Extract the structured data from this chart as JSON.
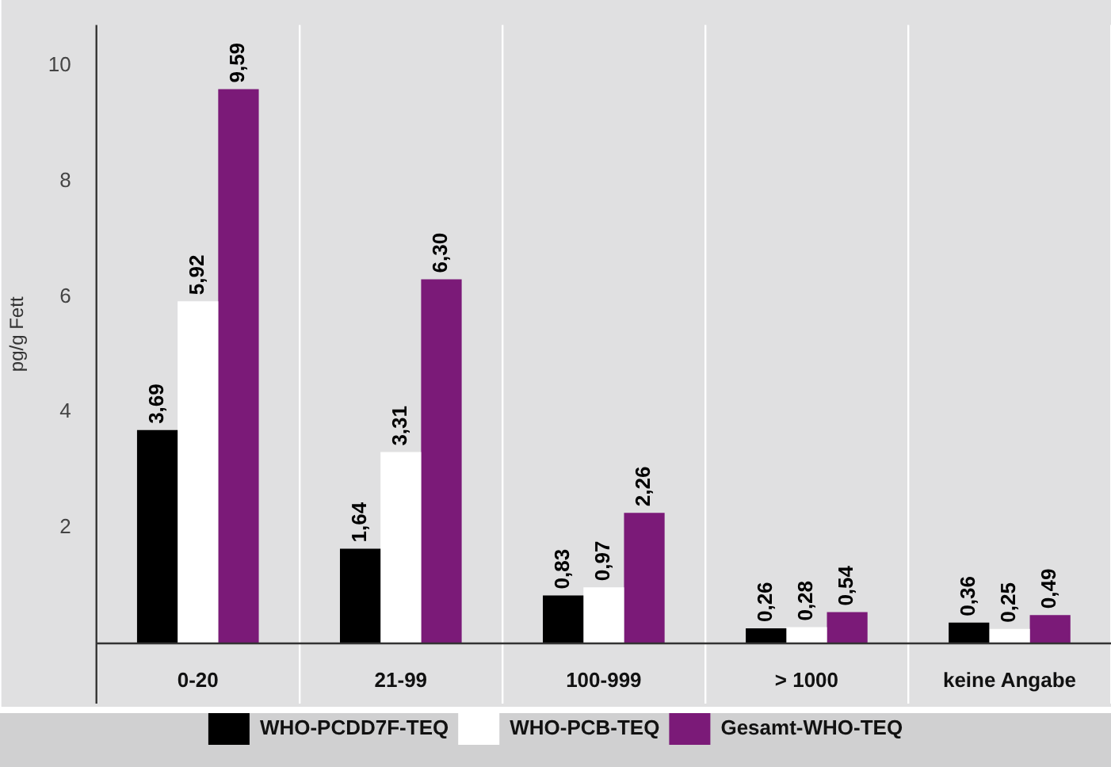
{
  "chart_data": {
    "type": "bar",
    "ylabel": "pg/g Fett",
    "categories": [
      "0-20",
      "21-99",
      "100-999",
      "> 1000",
      "keine Angabe"
    ],
    "series": [
      {
        "name": "WHO-PCDD7F-TEQ",
        "color": "#000000",
        "values": [
          3.69,
          1.64,
          0.83,
          0.26,
          0.36
        ],
        "value_labels": [
          "3,69",
          "1,64",
          "0,83",
          "0,26",
          "0,36"
        ]
      },
      {
        "name": "WHO-PCB-TEQ",
        "color": "#ffffff",
        "values": [
          5.92,
          3.31,
          0.97,
          0.28,
          0.25
        ],
        "value_labels": [
          "5,92",
          "3,31",
          "0,97",
          "0,28",
          "0,25"
        ]
      },
      {
        "name": "Gesamt-WHO-TEQ",
        "color": "#7b1a78",
        "values": [
          9.59,
          6.3,
          2.26,
          0.54,
          0.49
        ],
        "value_labels": [
          "9,59",
          "6,30",
          "2,26",
          "0,54",
          "0,49"
        ]
      }
    ],
    "ylim": [
      0,
      10.7
    ],
    "yticks": [
      2,
      4,
      6,
      8,
      10
    ],
    "grid": "x",
    "legend": "bottom"
  }
}
